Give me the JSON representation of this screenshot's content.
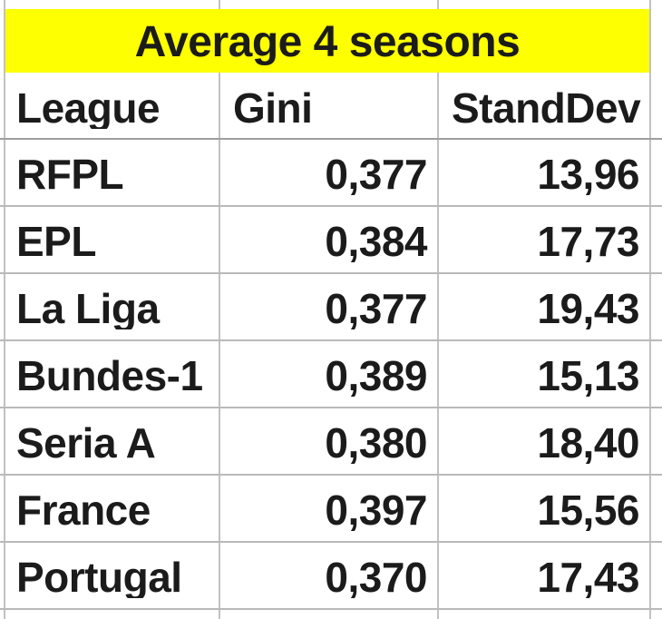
{
  "sheet": {
    "title": "Average 4 seasons",
    "columns": {
      "league": "League",
      "gini": "Gini",
      "standdev": "StandDev"
    },
    "rows": [
      {
        "league": "RFPL",
        "gini": "0,377",
        "standdev": "13,96"
      },
      {
        "league": "EPL",
        "gini": "0,384",
        "standdev": "17,73"
      },
      {
        "league": "La Liga",
        "gini": "0,377",
        "standdev": "19,43"
      },
      {
        "league": "Bundes-1",
        "gini": "0,389",
        "standdev": "15,13"
      },
      {
        "league": "Seria A",
        "gini": "0,380",
        "standdev": "18,40"
      },
      {
        "league": "France",
        "gini": "0,397",
        "standdev": "15,56"
      },
      {
        "league": "Portugal",
        "gini": "0,370",
        "standdev": "17,43"
      }
    ],
    "colors": {
      "title_background": "#feff00",
      "text": "#1b1b1b",
      "gridline": "#c2c2c2",
      "gridline_dark": "#9e9e9e",
      "background": "#ffffff"
    }
  },
  "chart_data": {
    "type": "table",
    "title": "Average 4 seasons",
    "columns": [
      "League",
      "Gini",
      "StandDev"
    ],
    "rows": [
      [
        "RFPL",
        0.377,
        13.96
      ],
      [
        "EPL",
        0.384,
        17.73
      ],
      [
        "La Liga",
        0.377,
        19.43
      ],
      [
        "Bundes-1",
        0.389,
        15.13
      ],
      [
        "Seria A",
        0.38,
        18.4
      ],
      [
        "France",
        0.397,
        15.56
      ],
      [
        "Portugal",
        0.37,
        17.43
      ]
    ],
    "notes": "Decimal comma formatting shown in UI (e.g. 0,377 / 13,96)"
  }
}
